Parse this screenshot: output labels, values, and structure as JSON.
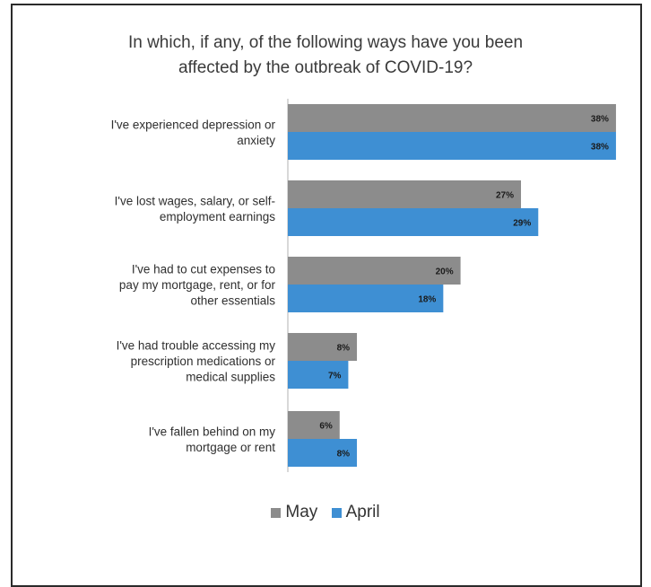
{
  "chart_data": {
    "type": "bar",
    "orientation": "horizontal",
    "title_lines": [
      "In which, if any, of the following ways have you been",
      "affected by the outbreak of COVID-19?"
    ],
    "categories": [
      [
        "I've experienced depression or",
        "anxiety"
      ],
      [
        "I've lost wages, salary, or self-",
        "employment earnings"
      ],
      [
        "I've had to cut expenses to",
        "pay my mortgage, rent, or for",
        "other essentials"
      ],
      [
        "I've had trouble accessing my",
        "prescription medications or",
        "medical supplies"
      ],
      [
        "I've fallen behind on my",
        "mortgage or rent"
      ]
    ],
    "series": [
      {
        "name": "May",
        "color": "#8c8c8c",
        "values": [
          38,
          27,
          20,
          8,
          6
        ]
      },
      {
        "name": "April",
        "color": "#3e8fd3",
        "values": [
          38,
          29,
          18,
          7,
          8
        ]
      }
    ],
    "value_suffix": "%",
    "legend": {
      "position": "bottom"
    },
    "grid": false
  }
}
